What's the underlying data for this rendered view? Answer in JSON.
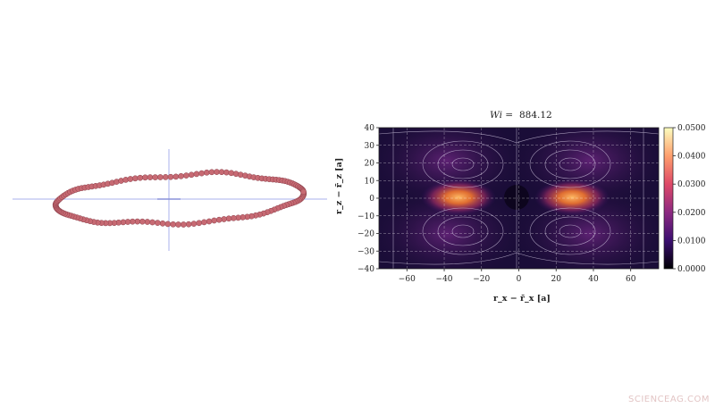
{
  "ring_figure": {
    "bead_color": "#c76a73",
    "bead_outline": "#8a3f4a",
    "crosshair_color": "#a9b2ee"
  },
  "flow_plot": {
    "title_label": "Wi =",
    "title_value": "884.12",
    "xlabel": "r_x − r̄_x [a]",
    "ylabel": "r_z − r̄_z [a]",
    "xticks": [
      "−60",
      "−40",
      "−20",
      "0",
      "20",
      "40",
      "60"
    ],
    "yticks": [
      "40",
      "30",
      "20",
      "10",
      "0",
      "−10",
      "−20",
      "−30",
      "−40"
    ],
    "colorbar_ticks": [
      "0.0500",
      "0.0400",
      "0.0300",
      "0.0200",
      "0.0100",
      "0.0000"
    ],
    "colormap": [
      "#000004",
      "#3b0f70",
      "#8c2981",
      "#de4968",
      "#fe9f6d",
      "#fcfdbf"
    ]
  },
  "watermark": "SCIENCEAG.COM"
}
